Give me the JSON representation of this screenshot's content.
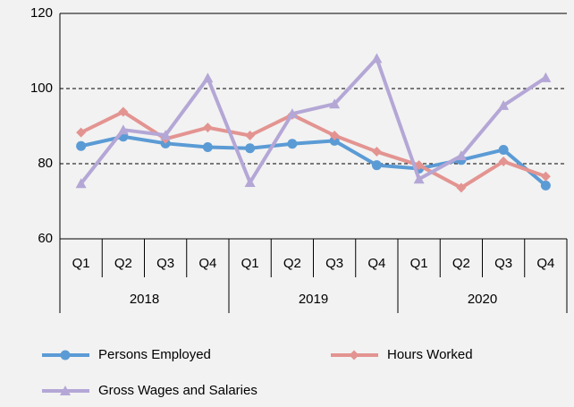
{
  "chart_data": {
    "type": "line",
    "categories": [
      "Q1",
      "Q2",
      "Q3",
      "Q4",
      "Q1",
      "Q2",
      "Q3",
      "Q4",
      "Q1",
      "Q2",
      "Q3",
      "Q4"
    ],
    "category_groups": [
      "2018",
      "2019",
      "2020"
    ],
    "series": [
      {
        "name": "Persons Employed",
        "color": "#5b9bd5",
        "marker": "circle",
        "values": [
          84.7,
          87.2,
          85.4,
          84.4,
          84.1,
          85.3,
          86.1,
          79.6,
          78.7,
          81.0,
          83.7,
          74.2
        ]
      },
      {
        "name": "Hours Worked",
        "color": "#e39491",
        "marker": "diamond",
        "values": [
          88.3,
          93.8,
          86.6,
          89.6,
          87.5,
          93.0,
          87.5,
          83.2,
          79.6,
          73.6,
          80.6,
          76.6
        ]
      },
      {
        "name": "Gross Wages and Salaries",
        "color": "#b4a7d6",
        "marker": "triangle",
        "values": [
          74.7,
          89.0,
          87.6,
          102.8,
          75.0,
          93.3,
          95.9,
          108.0,
          75.9,
          82.1,
          95.5,
          102.9
        ]
      }
    ],
    "ylim": [
      60,
      120
    ],
    "yticks": [
      60,
      80,
      100,
      120
    ],
    "grid": true
  }
}
